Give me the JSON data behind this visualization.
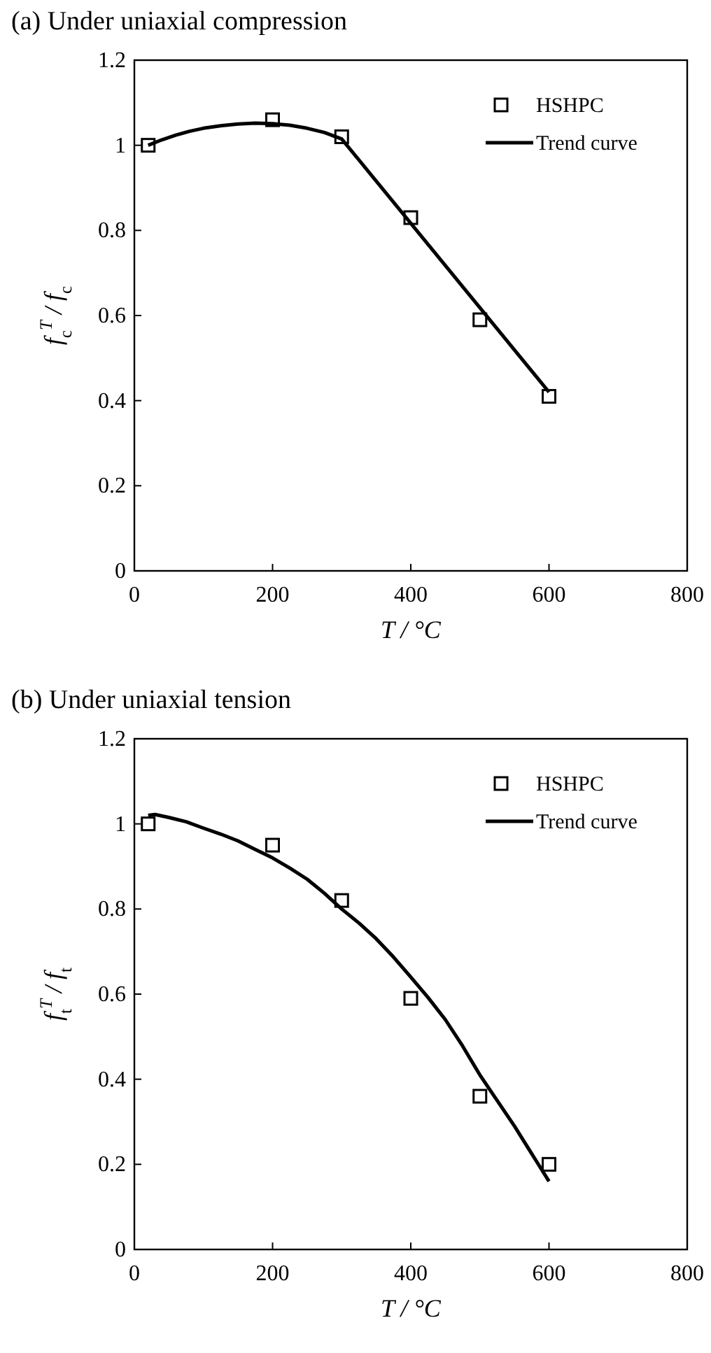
{
  "chart_data": [
    {
      "type": "scatter",
      "title": "(a) Under uniaxial compression",
      "xlabel": "T / °C",
      "ylabel": "f$_{c}$$^{T}$ / f$_{c}$",
      "xlim": [
        0,
        800
      ],
      "xticks": [
        0,
        200,
        400,
        600,
        800
      ],
      "ylim": [
        0,
        1.2
      ],
      "yticks": [
        0,
        0.2,
        0.4,
        0.6,
        0.8,
        1,
        1.2
      ],
      "legend": "top right",
      "series": [
        {
          "name": "HSHPC",
          "marker": "square",
          "color": "#000000",
          "x": [
            20,
            200,
            300,
            400,
            500,
            600
          ],
          "values": [
            1.0,
            1.06,
            1.02,
            0.83,
            0.59,
            0.41
          ]
        },
        {
          "name": "Trend curve",
          "type": "line",
          "marker": "none",
          "color": "#000000",
          "x": [
            20,
            40,
            60,
            80,
            100,
            125,
            150,
            175,
            200,
            225,
            250,
            275,
            300,
            600
          ],
          "values": [
            1.0,
            1.013,
            1.024,
            1.033,
            1.04,
            1.046,
            1.05,
            1.052,
            1.051,
            1.047,
            1.04,
            1.03,
            1.015,
            0.42
          ]
        }
      ]
    },
    {
      "type": "scatter",
      "title": "(b) Under uniaxial tension",
      "xlabel": "T / °C",
      "ylabel": "f$_{t}$$^{T}$ / f$_{t}$",
      "xlim": [
        0,
        800
      ],
      "xticks": [
        0,
        200,
        400,
        600,
        800
      ],
      "ylim": [
        0,
        1.2
      ],
      "yticks": [
        0,
        0.2,
        0.4,
        0.6,
        0.8,
        1,
        1.2
      ],
      "legend": "top right",
      "series": [
        {
          "name": "HSHPC",
          "marker": "square",
          "color": "#000000",
          "x": [
            20,
            200,
            300,
            400,
            500,
            600
          ],
          "values": [
            1.0,
            0.95,
            0.82,
            0.59,
            0.36,
            0.2
          ]
        },
        {
          "name": "Trend curve",
          "type": "line",
          "marker": "none",
          "color": "#000000",
          "x": [
            20,
            30,
            50,
            75,
            100,
            125,
            150,
            175,
            200,
            225,
            250,
            275,
            300,
            325,
            350,
            375,
            400,
            425,
            450,
            475,
            500,
            525,
            550,
            575,
            600
          ],
          "values": [
            1.02,
            1.022,
            1.015,
            1.005,
            0.99,
            0.976,
            0.96,
            0.94,
            0.92,
            0.896,
            0.87,
            0.837,
            0.8,
            0.767,
            0.73,
            0.687,
            0.64,
            0.592,
            0.54,
            0.478,
            0.41,
            0.35,
            0.29,
            0.225,
            0.16
          ]
        }
      ]
    }
  ]
}
